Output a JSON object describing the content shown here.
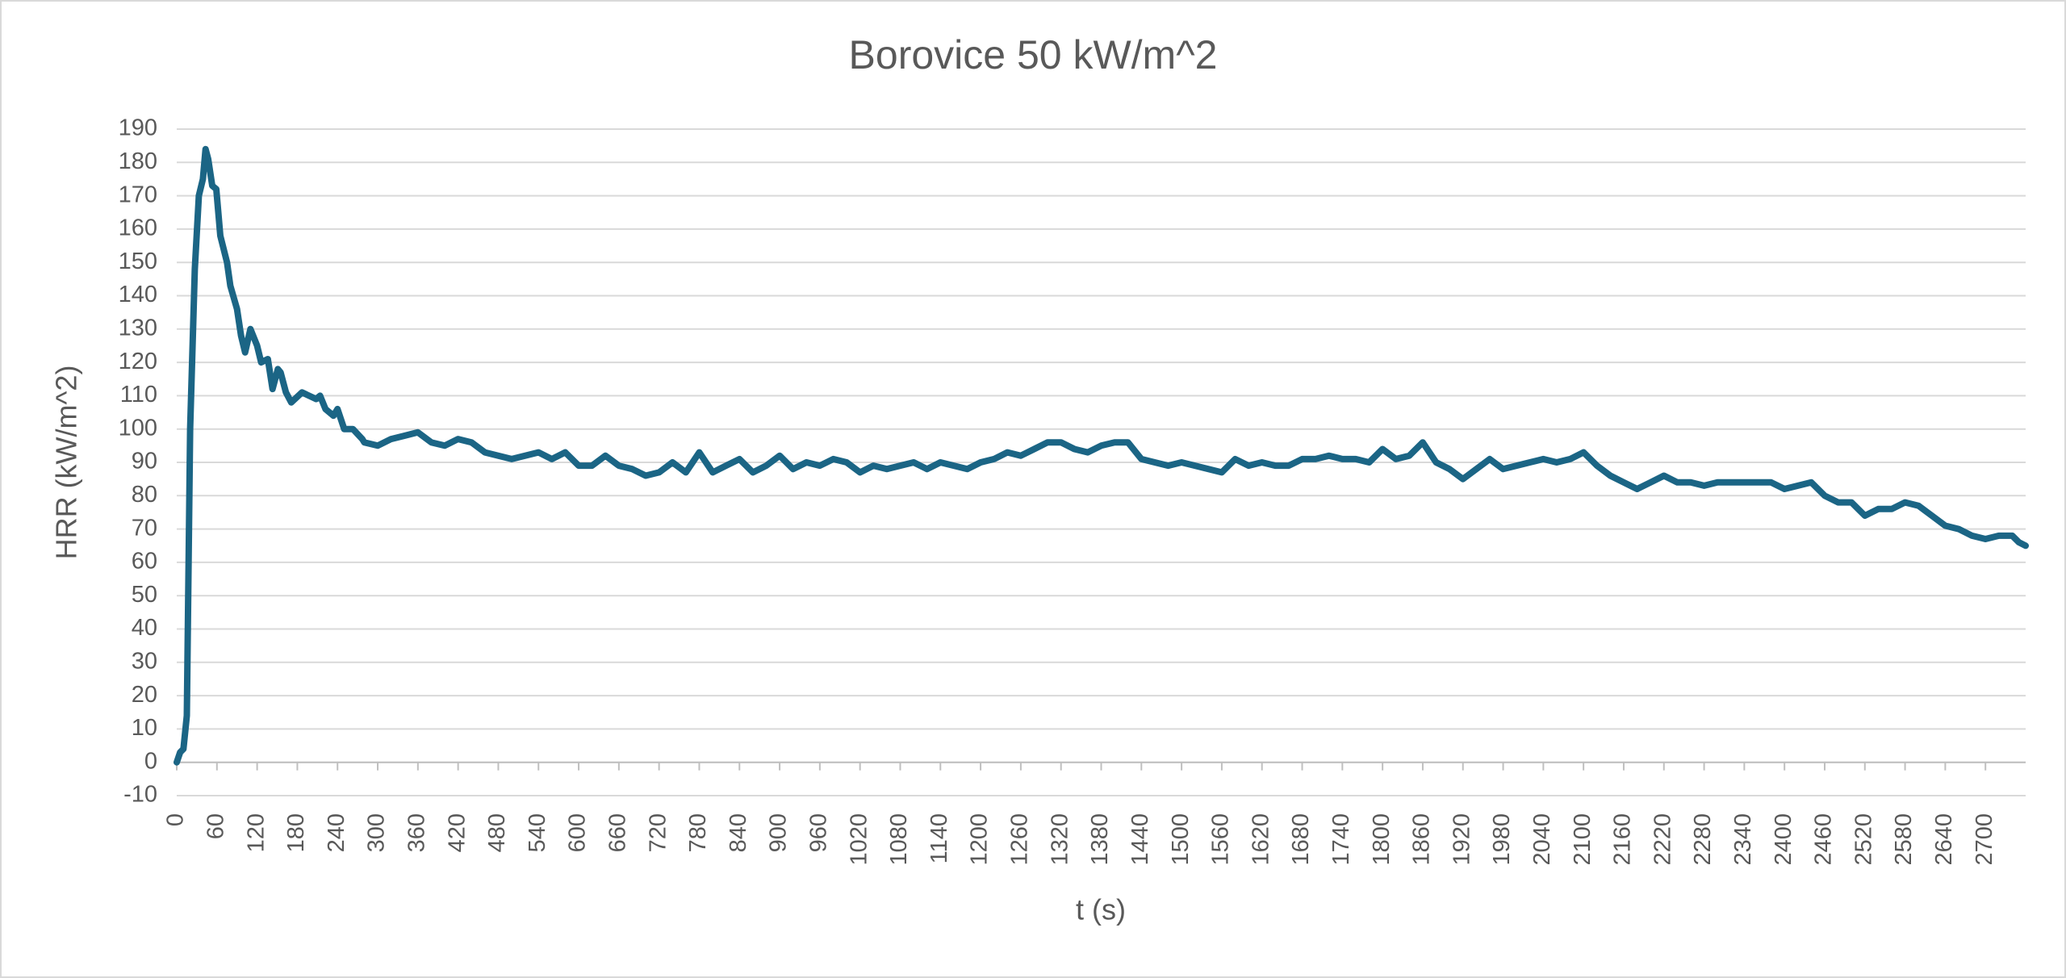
{
  "chart_data": {
    "type": "line",
    "title": "Borovice 50 kW/m^2",
    "x_label": "t (s)",
    "y_label": "HRR (kW/m^2)",
    "x": [
      0,
      5,
      10,
      15,
      20,
      27,
      33,
      39,
      43,
      47,
      53,
      59,
      65,
      75,
      80,
      90,
      96,
      102,
      110,
      120,
      126,
      136,
      143,
      151,
      155,
      163,
      171,
      187,
      208,
      214,
      222,
      234,
      240,
      250,
      263,
      277,
      280,
      300,
      320,
      340,
      360,
      380,
      400,
      420,
      440,
      460,
      480,
      500,
      520,
      540,
      560,
      580,
      600,
      620,
      640,
      660,
      680,
      700,
      720,
      740,
      760,
      780,
      800,
      820,
      840,
      860,
      880,
      900,
      920,
      940,
      960,
      980,
      1000,
      1020,
      1040,
      1060,
      1080,
      1100,
      1120,
      1140,
      1160,
      1180,
      1200,
      1220,
      1240,
      1260,
      1280,
      1300,
      1320,
      1340,
      1360,
      1380,
      1400,
      1420,
      1440,
      1460,
      1480,
      1500,
      1520,
      1540,
      1560,
      1580,
      1600,
      1620,
      1640,
      1660,
      1680,
      1700,
      1720,
      1740,
      1760,
      1780,
      1800,
      1820,
      1840,
      1860,
      1880,
      1900,
      1920,
      1940,
      1960,
      1980,
      2000,
      2020,
      2040,
      2060,
      2080,
      2100,
      2120,
      2140,
      2160,
      2180,
      2200,
      2220,
      2240,
      2260,
      2280,
      2300,
      2320,
      2340,
      2360,
      2380,
      2400,
      2420,
      2440,
      2460,
      2480,
      2500,
      2520,
      2540,
      2560,
      2580,
      2600,
      2620,
      2640,
      2660,
      2680,
      2700,
      2720,
      2740,
      2750,
      2760
    ],
    "values": [
      0,
      3,
      4,
      14,
      100,
      148,
      170,
      175,
      184,
      181,
      173,
      172,
      158,
      150,
      143,
      136,
      128,
      123,
      130,
      125,
      120,
      121,
      112,
      118,
      117,
      111,
      108,
      111,
      109,
      110,
      106,
      104,
      106,
      100,
      100,
      97,
      96,
      95,
      97,
      98,
      99,
      96,
      95,
      97,
      96,
      93,
      92,
      91,
      92,
      93,
      91,
      93,
      89,
      89,
      92,
      89,
      88,
      86,
      87,
      90,
      87,
      93,
      87,
      89,
      91,
      87,
      89,
      92,
      88,
      90,
      89,
      91,
      90,
      87,
      89,
      88,
      89,
      90,
      88,
      90,
      89,
      88,
      90,
      91,
      93,
      92,
      94,
      96,
      96,
      94,
      93,
      95,
      96,
      96,
      91,
      90,
      89,
      90,
      89,
      88,
      87,
      91,
      89,
      90,
      89,
      89,
      91,
      91,
      92,
      91,
      91,
      90,
      94,
      91,
      92,
      96,
      90,
      88,
      85,
      88,
      91,
      88,
      89,
      90,
      91,
      90,
      91,
      93,
      89,
      86,
      84,
      82,
      84,
      86,
      84,
      84,
      83,
      84,
      84,
      84,
      84,
      84,
      82,
      83,
      84,
      80,
      78,
      78,
      74,
      76,
      76,
      78,
      77,
      74,
      71,
      70,
      68,
      67,
      68,
      68,
      66,
      65
    ],
    "color": "#1b6585",
    "xlim": [
      0,
      2760
    ],
    "xticks": [
      0,
      60,
      120,
      180,
      240,
      300,
      360,
      420,
      480,
      540,
      600,
      660,
      720,
      780,
      840,
      900,
      960,
      1020,
      1080,
      1140,
      1200,
      1260,
      1320,
      1380,
      1440,
      1500,
      1560,
      1620,
      1680,
      1740,
      1800,
      1860,
      1920,
      1980,
      2040,
      2100,
      2160,
      2220,
      2280,
      2340,
      2400,
      2460,
      2520,
      2580,
      2640,
      2700
    ],
    "ylim": [
      -10,
      190
    ],
    "yticks": [
      -10,
      0,
      10,
      20,
      30,
      40,
      50,
      60,
      70,
      80,
      90,
      100,
      110,
      120,
      130,
      140,
      150,
      160,
      170,
      180,
      190
    ],
    "grid": true
  }
}
